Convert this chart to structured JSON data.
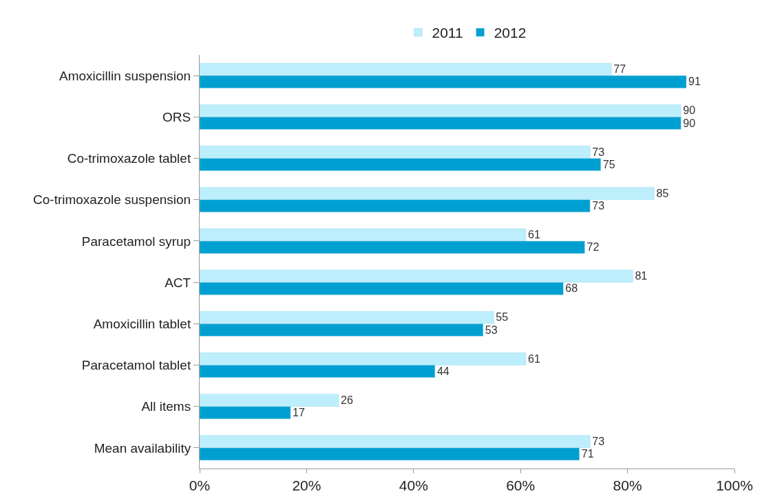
{
  "chart_data": {
    "type": "bar",
    "orientation": "horizontal",
    "categories": [
      "Amoxicillin suspension",
      "ORS",
      "Co-trimoxazole tablet",
      "Co-trimoxazole suspension",
      "Paracetamol syrup",
      "ACT",
      "Amoxicillin tablet",
      "Paracetamol tablet",
      "All items",
      "Mean availability"
    ],
    "series": [
      {
        "name": "2011",
        "color": "#bdeefc",
        "values": [
          77,
          90,
          73,
          85,
          61,
          81,
          55,
          61,
          26,
          73
        ]
      },
      {
        "name": "2012",
        "color": "#009fd1",
        "values": [
          91,
          90,
          75,
          73,
          72,
          68,
          53,
          44,
          17,
          71
        ]
      }
    ],
    "xlim": [
      0,
      100
    ],
    "xticks": [
      {
        "value": 0,
        "label": "0%"
      },
      {
        "value": 20,
        "label": "20%"
      },
      {
        "value": 40,
        "label": "40%"
      },
      {
        "value": 60,
        "label": "60%"
      },
      {
        "value": 80,
        "label": "80%"
      },
      {
        "value": 100,
        "label": "100%"
      }
    ],
    "data_labels": true,
    "grid": false,
    "legend": "top"
  }
}
